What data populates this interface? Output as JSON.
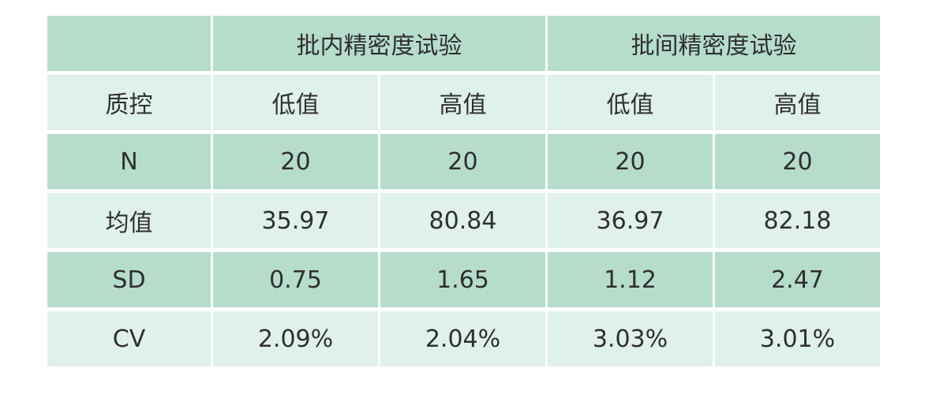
{
  "table": {
    "groups": [
      "批内精密度试验",
      "批间精密度试验"
    ],
    "subheader": {
      "label": "质控",
      "columns": [
        "低值",
        "高值",
        "低值",
        "高值"
      ]
    },
    "rows": [
      [
        "N",
        "20",
        "20",
        "20",
        "20"
      ],
      [
        "均值",
        "35.97",
        "80.84",
        "36.97",
        "82.18"
      ],
      [
        "SD",
        "0.75",
        "1.65",
        "1.12",
        "2.47"
      ],
      [
        "CV",
        "2.09%",
        "2.04%",
        "3.03%",
        "3.01%"
      ]
    ]
  }
}
